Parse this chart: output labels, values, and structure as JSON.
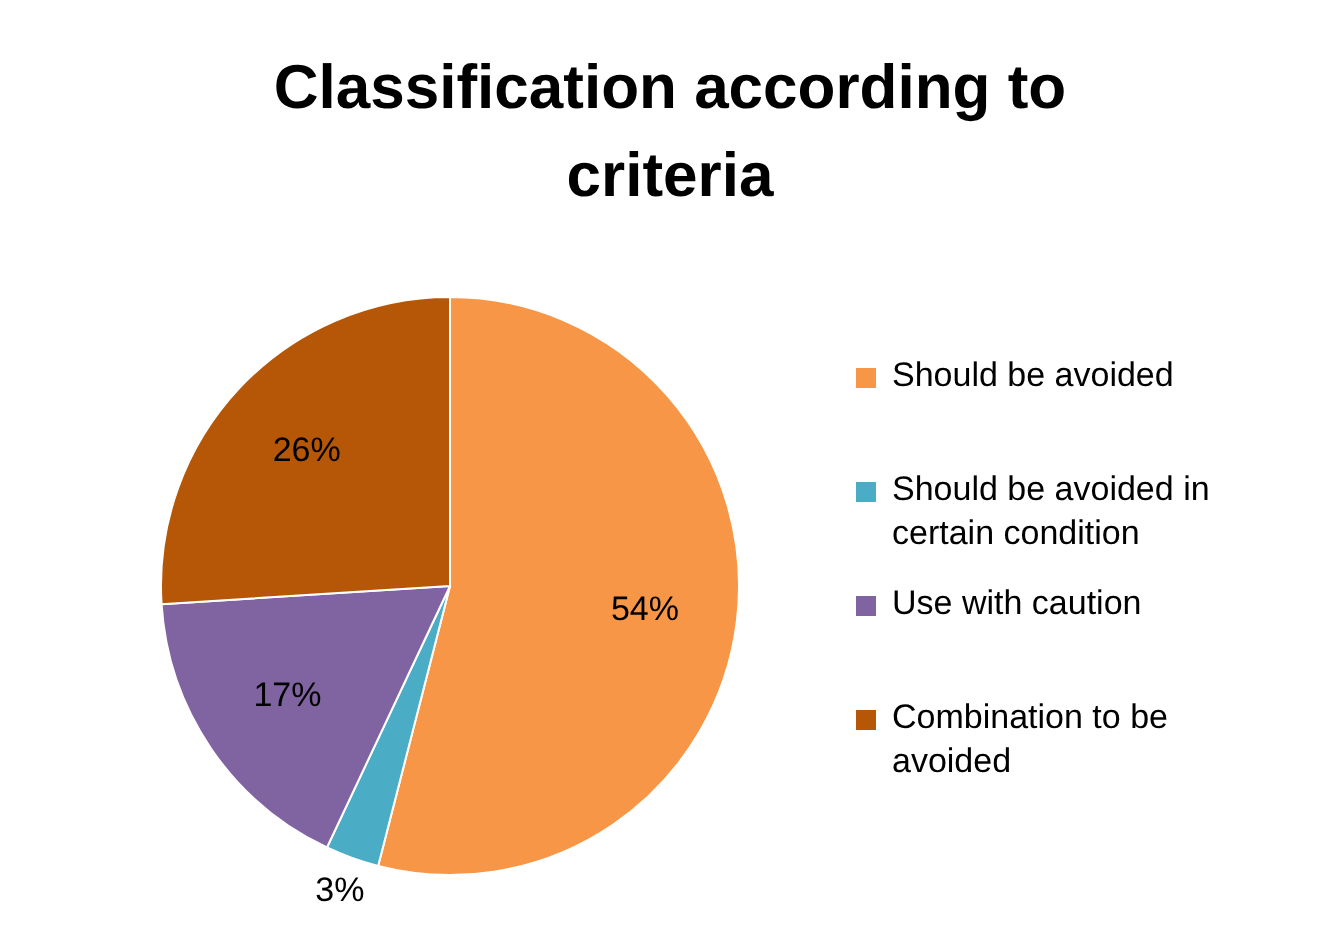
{
  "chart_data": {
    "type": "pie",
    "title": "Classification according to criteria",
    "categories": [
      "Should be avoided",
      "Should be avoided in certain condition",
      "Use with caution",
      "Combination to be avoided"
    ],
    "values": [
      54,
      3,
      17,
      26
    ],
    "colors": [
      "#f79646",
      "#4bacc6",
      "#8064a2",
      "#b65708"
    ],
    "value_labels": [
      "54%",
      "3%",
      "17%",
      "26%"
    ],
    "legend": "right"
  }
}
